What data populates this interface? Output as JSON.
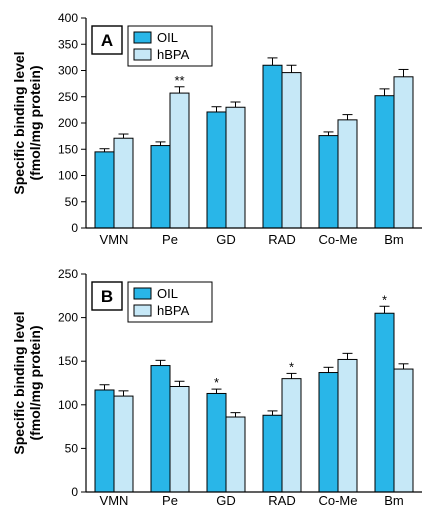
{
  "colors": {
    "oil": "#29b6e8",
    "hbpa": "#c6e8f7",
    "axis": "#000000"
  },
  "chart_data": [
    {
      "type": "bar",
      "panel_label": "A",
      "ylabel_line1": "Specific binding level",
      "ylabel_line2": "(fmol/mg protein)",
      "ylim": [
        0,
        400
      ],
      "yticks": [
        0,
        50,
        100,
        150,
        200,
        250,
        300,
        350,
        400
      ],
      "categories": [
        "VMN",
        "Pe",
        "GD",
        "RAD",
        "Co-Me",
        "Bm"
      ],
      "legend": "top-left",
      "series": [
        {
          "name": "OIL",
          "color_key": "oil",
          "values": [
            145,
            157,
            221,
            310,
            176,
            252
          ],
          "errors": [
            6,
            7,
            10,
            14,
            7,
            13
          ]
        },
        {
          "name": "hBPA",
          "color_key": "hbpa",
          "values": [
            171,
            257,
            230,
            296,
            206,
            288
          ],
          "errors": [
            8,
            12,
            10,
            14,
            10,
            14
          ]
        }
      ],
      "annotations": [
        {
          "category_index": 1,
          "series_index": 1,
          "text": "**"
        }
      ]
    },
    {
      "type": "bar",
      "panel_label": "B",
      "ylabel_line1": "Specific binding level",
      "ylabel_line2": "(fmol/mg protein)",
      "ylim": [
        0,
        250
      ],
      "yticks": [
        0,
        50,
        100,
        150,
        200,
        250
      ],
      "categories": [
        "VMN",
        "Pe",
        "GD",
        "RAD",
        "Co-Me",
        "Bm"
      ],
      "legend": "top-left",
      "series": [
        {
          "name": "OIL",
          "color_key": "oil",
          "values": [
            117,
            145,
            113,
            88,
            137,
            205
          ],
          "errors": [
            6,
            6,
            5,
            5,
            6,
            8
          ]
        },
        {
          "name": "hBPA",
          "color_key": "hbpa",
          "values": [
            110,
            121,
            86,
            130,
            152,
            141
          ],
          "errors": [
            6,
            6,
            5,
            6,
            7,
            6
          ]
        }
      ],
      "annotations": [
        {
          "category_index": 2,
          "series_index": 0,
          "text": "*"
        },
        {
          "category_index": 3,
          "series_index": 1,
          "text": "*"
        },
        {
          "category_index": 5,
          "series_index": 0,
          "text": "*"
        }
      ]
    }
  ]
}
